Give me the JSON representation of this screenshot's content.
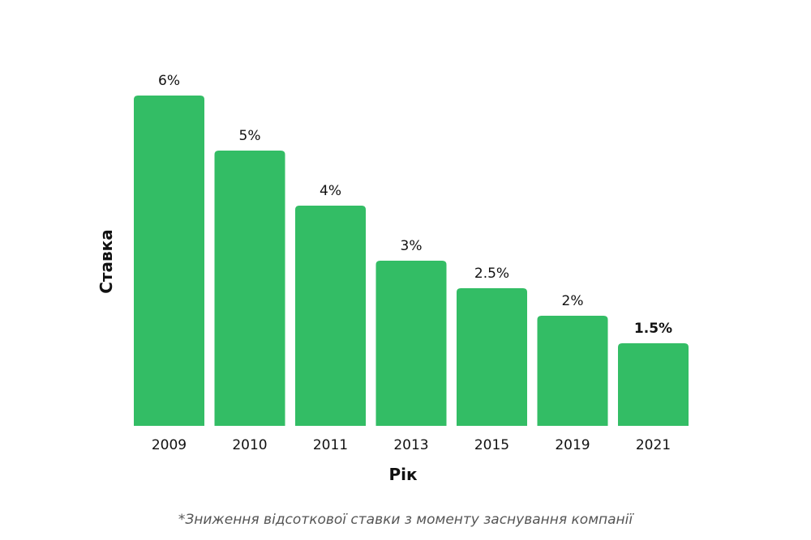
{
  "chart_data": {
    "type": "bar",
    "categories": [
      "2009",
      "2010",
      "2011",
      "2013",
      "2015",
      "2019",
      "2021"
    ],
    "values": [
      6,
      5,
      4,
      3,
      2.5,
      2,
      1.5
    ],
    "value_labels": [
      "6%",
      "5%",
      "4%",
      "3%",
      "2.5%",
      "2%",
      "1.5%"
    ],
    "highlight_index": 6,
    "xlabel": "Рік",
    "ylabel": "Ставка",
    "ylim": [
      0,
      6
    ],
    "grid": false,
    "bar_color": "#33bd65"
  },
  "footnote": "*Зниження відсоткової ставки з моменту заснування компанії"
}
